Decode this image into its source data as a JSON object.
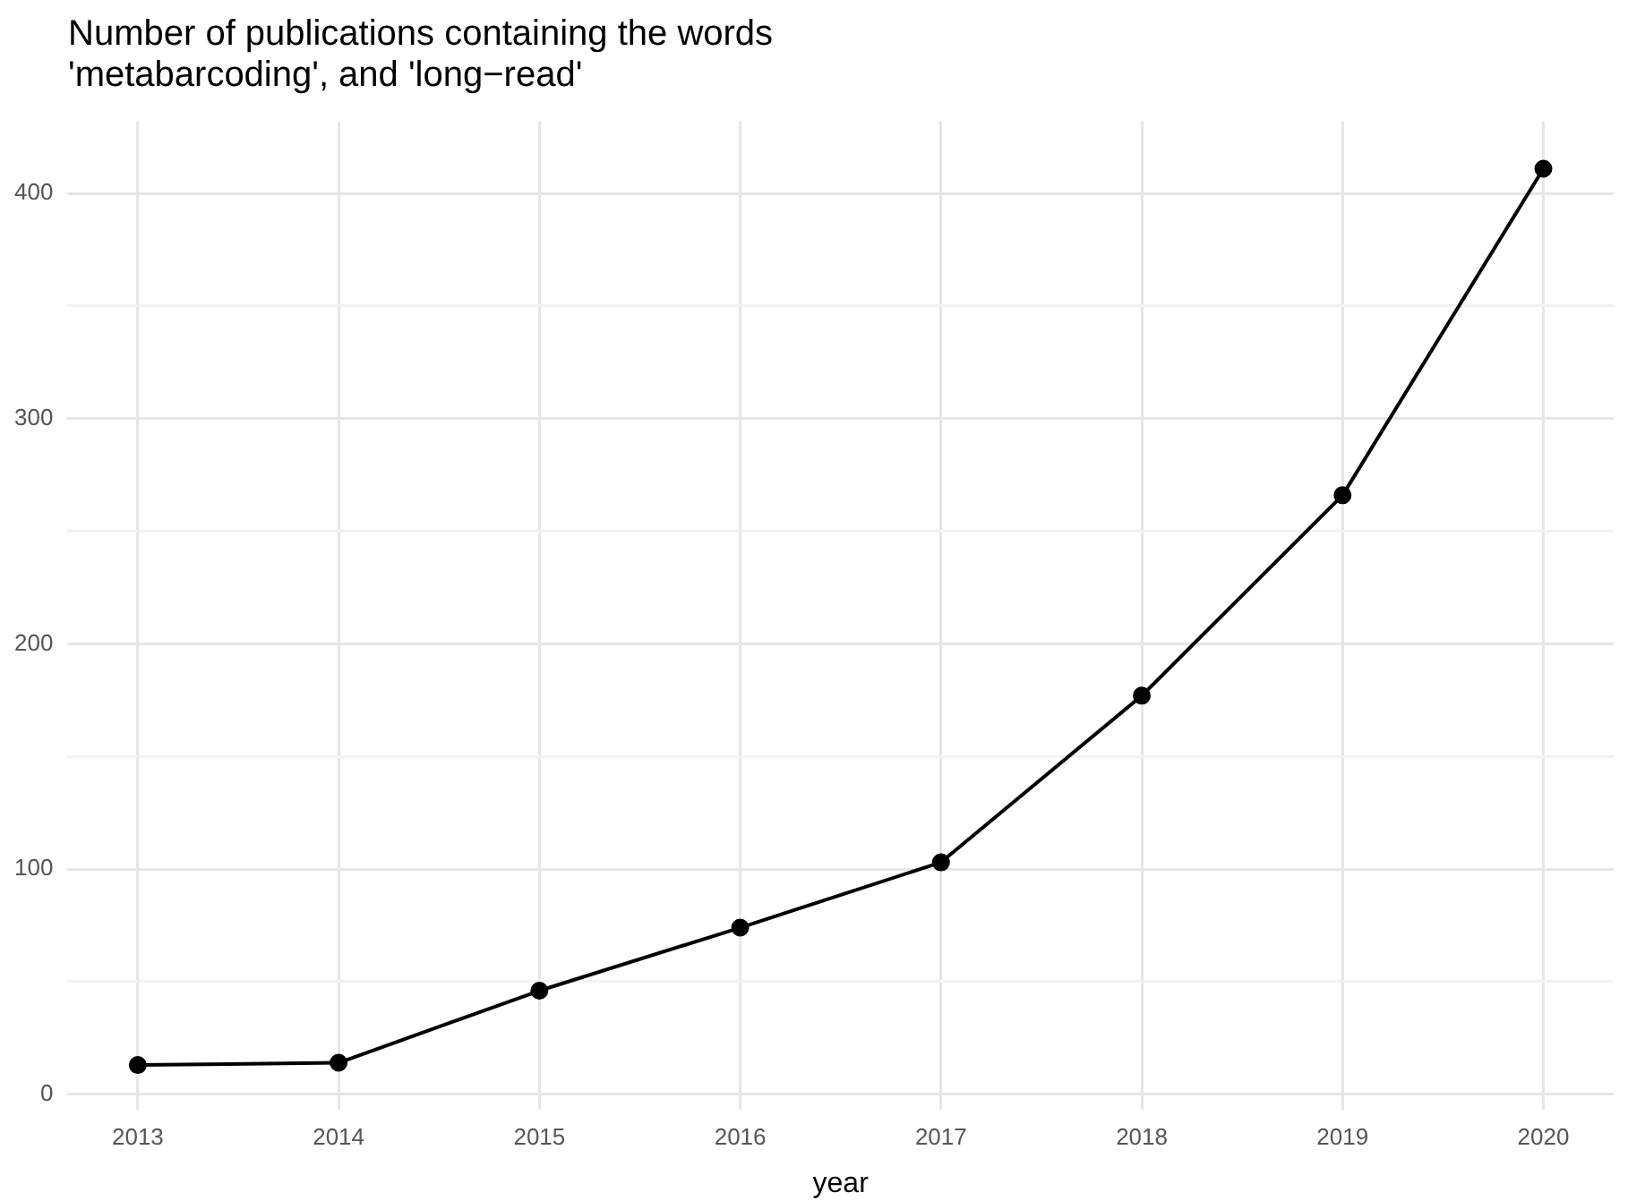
{
  "chart_data": {
    "type": "line",
    "title": "Number of publications containing the words\n'metabarcoding', and 'long−read'",
    "xlabel": "year",
    "x": [
      2013,
      2014,
      2015,
      2016,
      2017,
      2018,
      2019,
      2020
    ],
    "series": [
      {
        "color": "#000000",
        "values": [
          13,
          14,
          46,
          74,
          103,
          177,
          266,
          411
        ]
      }
    ],
    "xlim": [
      2012.65,
      2020.35
    ],
    "xticks": [
      2013,
      2014,
      2015,
      2016,
      2017,
      2018,
      2019,
      2020
    ],
    "ylim": [
      -7,
      432
    ],
    "yticks": [
      0,
      {
        "value": 50,
        "label": null
      },
      100,
      {
        "value": 150,
        "label": null
      },
      200,
      {
        "value": 250,
        "label": null
      },
      300,
      {
        "value": 350,
        "label": null
      },
      400
    ],
    "grid": true,
    "marker": "circle",
    "line_style": "solid"
  }
}
